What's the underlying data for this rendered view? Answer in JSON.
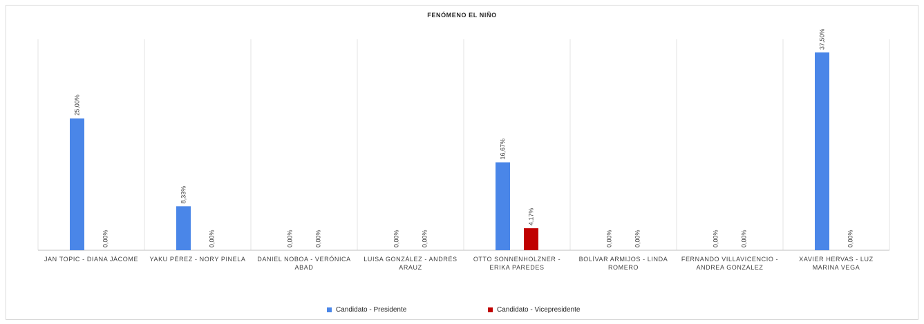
{
  "chart_data": {
    "type": "bar",
    "title": "FENÓMENO EL NIÑO",
    "categories": [
      [
        "JAN TOPIC -  DIANA JÁCOME"
      ],
      [
        "YAKU PÉREZ - NORY PINELA"
      ],
      [
        "DANIEL NOBOA - VERÓNICA",
        "ABAD"
      ],
      [
        "LUISA GONZÁLEZ - ANDRÉS",
        "ARAUZ"
      ],
      [
        "OTTO SONNENHOLZNER -",
        "ERIKA PAREDES"
      ],
      [
        "BOLÍVAR ARMIJOS - LINDA",
        "ROMERO"
      ],
      [
        "FERNANDO VILLAVICENCIO -",
        "ANDREA GONZALEZ"
      ],
      [
        "XAVIER HERVAS - LUZ",
        "MARINA VEGA"
      ]
    ],
    "series": [
      {
        "name": "Candidato - Presidente",
        "color": "#4a86e8",
        "values": [
          25.0,
          8.33,
          0,
          0,
          16.67,
          0,
          0,
          37.5
        ],
        "labels": [
          "25,00%",
          "8,33%",
          "0,00%",
          "0,00%",
          "16,67%",
          "0,00%",
          "0,00%",
          "37,50%"
        ]
      },
      {
        "name": "Candidato - Vicepresidente",
        "color": "#c00000",
        "values": [
          0,
          0,
          0,
          0,
          4.17,
          0,
          0,
          0
        ],
        "labels": [
          "0,00%",
          "0,00%",
          "0,00%",
          "0,00%",
          "4,17%",
          "0,00%",
          "0,00%",
          "0,00%"
        ]
      }
    ],
    "ylim": [
      0,
      40
    ],
    "grid": "vertical category separators",
    "legend": "bottom-center"
  }
}
